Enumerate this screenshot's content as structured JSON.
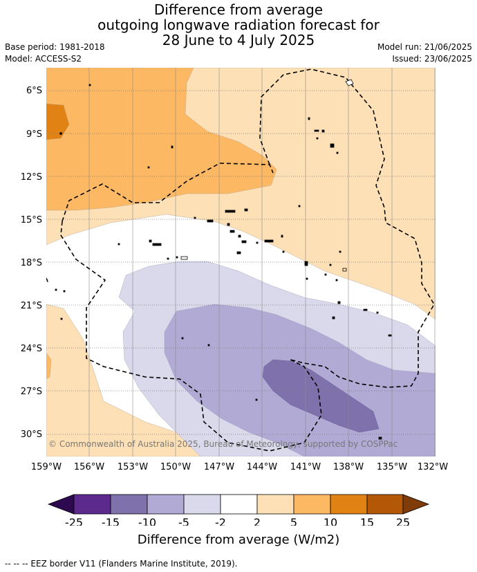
{
  "title": {
    "line1": "Difference from average",
    "line2": "outgoing longwave radiation forecast for",
    "line3": "28 June to 4 July 2025"
  },
  "meta": {
    "base_period": "Base period: 1981-2018",
    "model": "Model: ACCESS-S2",
    "model_run": "Model run: 21/06/2025",
    "issued": "Issued: 23/06/2025"
  },
  "map": {
    "latitude_labels": [
      "6°S",
      "9°S",
      "12°S",
      "15°S",
      "18°S",
      "21°S",
      "24°S",
      "27°S",
      "30°S"
    ],
    "longitude_labels": [
      "159°W",
      "156°W",
      "153°W",
      "150°W",
      "147°W",
      "144°W",
      "141°W",
      "138°W",
      "135°W",
      "132°W"
    ],
    "copyright": "© Commonwealth of Australia 2025, Bureau of Meteorology, supported by COSPPac"
  },
  "colorbar": {
    "ticks": [
      "-25",
      "-15",
      "-10",
      "-5",
      "-2",
      "2",
      "5",
      "10",
      "15",
      "25"
    ],
    "colors": {
      "below_min": "#2d0a50",
      "c1": "#5b2a8c",
      "c2": "#7f72ac",
      "c3": "#b0aad4",
      "c4": "#d9d9eb",
      "c5": "#ffffff",
      "c6": "#fee0b6",
      "c7": "#fdb863",
      "c8": "#e08214",
      "c9": "#b35806",
      "above_max": "#7f3b08"
    },
    "title": "Difference from average (W/m2)"
  },
  "footer": {
    "legend_text": "-- -- -- EEZ border V11 (Flanders Marine Institute, 2019)."
  }
}
